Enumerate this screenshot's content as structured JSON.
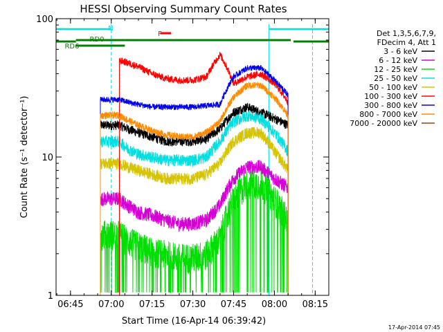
{
  "chart_data": {
    "type": "line",
    "title": "HESSI Observing Summary Count Rates",
    "xlabel": "Start Time (16-Apr-14 06:39:42)",
    "ylabel": "Count Rate (s⁻¹ detector⁻¹)",
    "y_scale": "log",
    "ylim": [
      1,
      100
    ],
    "xlim": [
      "06:39:42",
      "08:20:00"
    ],
    "x_ticks": [
      "06:45",
      "07:00",
      "07:15",
      "07:30",
      "07:45",
      "08:00",
      "08:15"
    ],
    "y_ticks": [
      "1",
      "10",
      "100"
    ],
    "legend_header": [
      "Det 1,3,5,6,7,9,",
      "FDecim 4, Att 1"
    ],
    "legend_position": "right",
    "footer_text": "17-Apr-2014 07:45",
    "data_start": "06:56",
    "data_end": "08:05",
    "series": [
      {
        "name": "3 - 6 keV",
        "color": "#000000",
        "x": [
          "06:56",
          "07:00",
          "07:03",
          "07:06",
          "07:10",
          "07:15",
          "07:20",
          "07:25",
          "07:30",
          "07:35",
          "07:40",
          "07:45",
          "07:50",
          "07:55",
          "08:00",
          "08:05"
        ],
        "values": [
          17,
          17,
          17,
          16,
          15,
          14,
          13,
          13,
          13,
          13.5,
          16,
          21,
          23,
          21,
          19,
          17
        ]
      },
      {
        "name": "6 - 12 keV",
        "color": "#d400d4",
        "x": [
          "06:56",
          "07:00",
          "07:03",
          "07:06",
          "07:10",
          "07:15",
          "07:20",
          "07:25",
          "07:30",
          "07:35",
          "07:40",
          "07:45",
          "07:50",
          "07:55",
          "08:00",
          "08:05"
        ],
        "values": [
          5,
          5,
          5,
          4.5,
          4,
          3.8,
          3.5,
          3.3,
          3.3,
          3.5,
          4.5,
          7,
          8.5,
          8.5,
          7,
          6
        ]
      },
      {
        "name": "12 - 25 keV",
        "color": "#00e000",
        "x": [
          "06:56",
          "07:00",
          "07:03",
          "07:06",
          "07:10",
          "07:15",
          "07:20",
          "07:25",
          "07:30",
          "07:35",
          "07:40",
          "07:45",
          "07:50",
          "07:55",
          "08:00",
          "08:05"
        ],
        "values": [
          2.8,
          2.8,
          2.8,
          2.5,
          2.3,
          2.1,
          2,
          1.9,
          1.9,
          2,
          2.6,
          5,
          6.5,
          6.5,
          5,
          3.5
        ]
      },
      {
        "name": "25 - 50 keV",
        "color": "#00e0e0",
        "x": [
          "06:56",
          "07:00",
          "07:03",
          "07:06",
          "07:10",
          "07:15",
          "07:20",
          "07:25",
          "07:30",
          "07:35",
          "07:40",
          "07:45",
          "07:50",
          "07:55",
          "08:00",
          "08:05"
        ],
        "values": [
          13,
          13,
          13,
          11.5,
          10.5,
          10,
          9.5,
          9.5,
          9.5,
          10,
          13,
          18,
          20,
          19,
          15,
          11
        ]
      },
      {
        "name": "50 - 100 keV",
        "color": "#d6c400",
        "x": [
          "06:56",
          "07:00",
          "07:03",
          "07:06",
          "07:10",
          "07:15",
          "07:20",
          "07:25",
          "07:30",
          "07:35",
          "07:40",
          "07:45",
          "07:50",
          "07:55",
          "08:00",
          "08:05"
        ],
        "values": [
          9,
          9,
          9,
          8.5,
          8,
          7.5,
          7,
          7,
          7,
          7.5,
          9,
          13,
          15,
          15,
          11,
          8
        ]
      },
      {
        "name": "100 - 300 keV",
        "color": "#ff0000",
        "x": [
          "07:03",
          "07:06",
          "07:10",
          "07:15",
          "07:20",
          "07:25",
          "07:30",
          "07:35",
          "07:40",
          "07:45",
          "07:50",
          "07:55",
          "08:00",
          "08:05"
        ],
        "values": [
          50,
          48,
          45,
          40,
          37,
          36,
          36,
          38,
          55,
          34,
          38,
          40,
          34,
          25
        ]
      },
      {
        "name": "300 - 800 keV",
        "color": "#0000ee",
        "x": [
          "06:56",
          "07:00",
          "07:03",
          "07:06",
          "07:10",
          "07:15",
          "07:20",
          "07:25",
          "07:30",
          "07:35",
          "07:40",
          "07:45",
          "07:50",
          "07:55",
          "08:00",
          "08:05"
        ],
        "values": [
          26,
          26,
          26,
          25,
          24,
          23,
          23,
          23,
          23,
          23.5,
          24,
          38,
          44,
          44,
          36,
          28
        ]
      },
      {
        "name": "800 - 7000 keV",
        "color": "#ff8c00",
        "x": [
          "06:56",
          "07:00",
          "07:03",
          "07:06",
          "07:10",
          "07:15",
          "07:20",
          "07:25",
          "07:30",
          "07:35",
          "07:40",
          "07:45",
          "07:50",
          "07:55",
          "08:00",
          "08:05"
        ],
        "values": [
          20,
          20,
          20,
          18.5,
          17,
          15.5,
          14.5,
          14,
          14,
          15,
          18,
          27,
          33,
          33,
          27,
          20
        ]
      },
      {
        "name": "7000 - 20000 keV",
        "color": "#8b4513",
        "x": [],
        "values": []
      }
    ],
    "annotations": [
      {
        "label": "N",
        "color": "#00e0e0",
        "bars": [
          [
            "06:39:42",
            "07:00"
          ],
          [
            "07:58",
            "08:20"
          ]
        ]
      },
      {
        "label": "RD6",
        "color": "#008000",
        "bars": [
          [
            "06:39:42",
            "06:47"
          ],
          [
            "06:47",
            "07:05"
          ],
          [
            "08:07",
            "08:20"
          ]
        ]
      },
      {
        "label": "RD0",
        "color": "#008000",
        "bars": [
          [
            "06:47",
            "07:05"
          ],
          [
            "07:05",
            "08:06"
          ]
        ]
      },
      {
        "label": "F",
        "color": "#ff0000",
        "bars": [
          [
            "07:18",
            "07:22"
          ]
        ]
      }
    ],
    "saa_markers": [
      "06:39:42",
      "07:00",
      "07:58",
      "08:14"
    ]
  }
}
